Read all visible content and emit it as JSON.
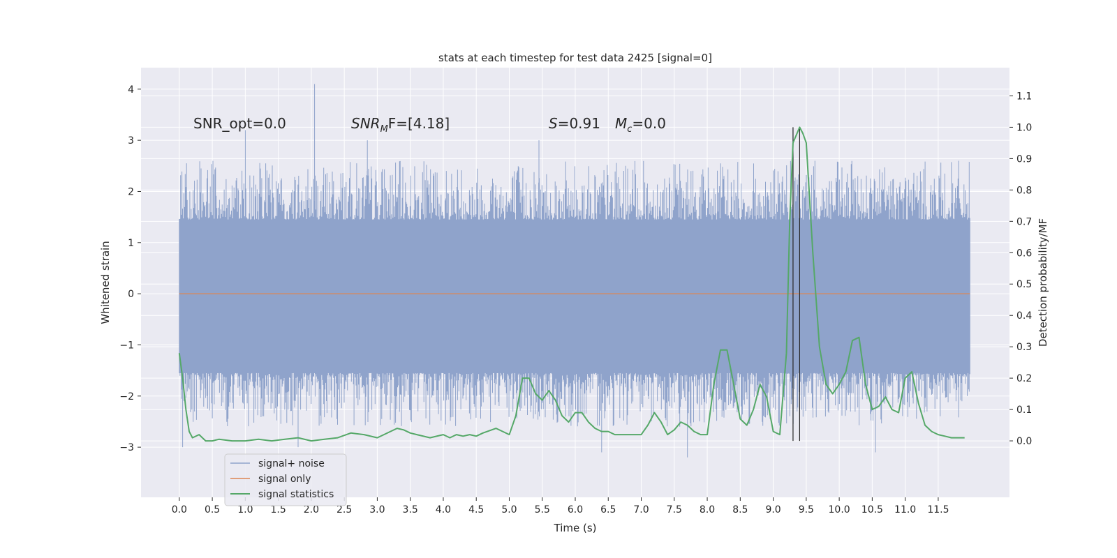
{
  "chart_data": {
    "type": "line",
    "title": "stats at each timestep for test data 2425 [signal=0]",
    "xlabel": "Time (s)",
    "ylabel": "Whitened strain",
    "y2label": "Detection probability/MF",
    "xlim": [
      -0.58,
      12.58
    ],
    "ylim": [
      -3.98,
      4.42
    ],
    "y2lim": [
      -0.18,
      1.19
    ],
    "xticks": [
      0.0,
      0.5,
      1.0,
      1.5,
      2.0,
      2.5,
      3.0,
      3.5,
      4.0,
      4.5,
      5.0,
      5.5,
      6.0,
      6.5,
      7.0,
      7.5,
      8.0,
      8.5,
      9.0,
      9.5,
      10.0,
      10.5,
      11.0,
      11.5
    ],
    "xtick_labels": [
      "0.0",
      "0.5",
      "1.0",
      "1.5",
      "2.0",
      "2.5",
      "3.0",
      "3.5",
      "4.0",
      "4.5",
      "5.0",
      "5.5",
      "6.0",
      "6.5",
      "7.0",
      "7.5",
      "8.0",
      "8.5",
      "9.0",
      "9.5",
      "10.0",
      "10.5",
      "11.0",
      "11.5"
    ],
    "yticks": [
      -3,
      -2,
      -1,
      0,
      1,
      2,
      3,
      4
    ],
    "ytick_labels": [
      "−3",
      "−2",
      "−1",
      "0",
      "1",
      "2",
      "3",
      "4"
    ],
    "y2ticks": [
      0.0,
      0.1,
      0.2,
      0.3,
      0.4,
      0.5,
      0.6,
      0.7,
      0.8,
      0.9,
      1.0,
      1.1
    ],
    "y2tick_labels": [
      "0.0",
      "0.1",
      "0.2",
      "0.3",
      "0.4",
      "0.5",
      "0.6",
      "0.7",
      "0.8",
      "0.9",
      "1.0",
      "1.1"
    ],
    "grid": true,
    "legend_position": "lower-left",
    "annotations": {
      "snr_opt": "SNR_opt=0.0",
      "snr_mf": "SNR",
      "snr_mf_sub": "M",
      "snr_mf_rest": "F=[4.18]",
      "s_stat": "S",
      "s_stat_rest": "=0.91",
      "mc": "M",
      "mc_sub": "c",
      "mc_rest": "=0.0"
    },
    "vertical_lines": [
      9.3,
      9.4
    ],
    "noise": {
      "x_start": 0.0,
      "x_end": 11.98,
      "band_low": -1.55,
      "band_high": 1.45,
      "typical_peak_high": 2.6,
      "typical_peak_low": -2.6,
      "notable_peaks": [
        {
          "x": 1.0,
          "y": 3.2
        },
        {
          "x": 2.05,
          "y": 4.1
        },
        {
          "x": 2.85,
          "y": 3.0
        },
        {
          "x": 5.45,
          "y": 3.0
        },
        {
          "x": 9.3,
          "y": 3.25
        },
        {
          "x": 0.05,
          "y": -3.0
        },
        {
          "x": 1.8,
          "y": -3.0
        },
        {
          "x": 6.4,
          "y": -3.1
        },
        {
          "x": 7.7,
          "y": -3.2
        },
        {
          "x": 10.55,
          "y": -3.1
        }
      ]
    },
    "series": [
      {
        "name": "signal+ noise",
        "color": "#8fa3cb",
        "kind": "noise-band"
      },
      {
        "name": "signal only",
        "color": "#dd8452",
        "x": [
          0.0,
          11.98
        ],
        "values": [
          0.0,
          0.0
        ]
      },
      {
        "name": "signal statistics",
        "color": "#55a868",
        "axis": "right",
        "x": [
          0.0,
          0.05,
          0.1,
          0.15,
          0.2,
          0.3,
          0.4,
          0.5,
          0.6,
          0.8,
          1.0,
          1.2,
          1.4,
          1.6,
          1.8,
          2.0,
          2.2,
          2.4,
          2.6,
          2.8,
          3.0,
          3.1,
          3.2,
          3.3,
          3.4,
          3.5,
          3.6,
          3.8,
          4.0,
          4.1,
          4.2,
          4.3,
          4.4,
          4.5,
          4.6,
          4.8,
          5.0,
          5.1,
          5.2,
          5.3,
          5.4,
          5.5,
          5.6,
          5.7,
          5.8,
          5.9,
          6.0,
          6.1,
          6.2,
          6.3,
          6.4,
          6.5,
          6.6,
          6.8,
          7.0,
          7.1,
          7.2,
          7.3,
          7.4,
          7.5,
          7.6,
          7.7,
          7.8,
          7.9,
          8.0,
          8.1,
          8.2,
          8.3,
          8.4,
          8.5,
          8.6,
          8.7,
          8.8,
          8.9,
          9.0,
          9.1,
          9.2,
          9.25,
          9.3,
          9.4,
          9.45,
          9.5,
          9.6,
          9.7,
          9.8,
          9.9,
          10.0,
          10.1,
          10.2,
          10.3,
          10.4,
          10.5,
          10.6,
          10.7,
          10.8,
          10.9,
          11.0,
          11.1,
          11.2,
          11.3,
          11.4,
          11.5,
          11.6,
          11.7,
          11.8,
          11.9
        ],
        "values": [
          0.28,
          0.2,
          0.1,
          0.03,
          0.01,
          0.02,
          0.0,
          0.0,
          0.005,
          0.0,
          0.0,
          0.005,
          0.0,
          0.005,
          0.01,
          0.0,
          0.005,
          0.01,
          0.025,
          0.02,
          0.01,
          0.02,
          0.03,
          0.04,
          0.035,
          0.025,
          0.02,
          0.01,
          0.02,
          0.01,
          0.02,
          0.015,
          0.02,
          0.015,
          0.025,
          0.04,
          0.02,
          0.08,
          0.2,
          0.2,
          0.15,
          0.13,
          0.16,
          0.13,
          0.08,
          0.06,
          0.09,
          0.09,
          0.06,
          0.04,
          0.03,
          0.03,
          0.02,
          0.02,
          0.02,
          0.05,
          0.09,
          0.06,
          0.02,
          0.035,
          0.06,
          0.05,
          0.03,
          0.02,
          0.02,
          0.18,
          0.29,
          0.29,
          0.18,
          0.07,
          0.05,
          0.1,
          0.18,
          0.14,
          0.03,
          0.02,
          0.28,
          0.7,
          0.95,
          1.0,
          0.98,
          0.95,
          0.6,
          0.3,
          0.18,
          0.15,
          0.18,
          0.22,
          0.32,
          0.33,
          0.18,
          0.1,
          0.11,
          0.14,
          0.1,
          0.09,
          0.2,
          0.22,
          0.12,
          0.05,
          0.03,
          0.02,
          0.015,
          0.01,
          0.01,
          0.01
        ]
      }
    ]
  }
}
